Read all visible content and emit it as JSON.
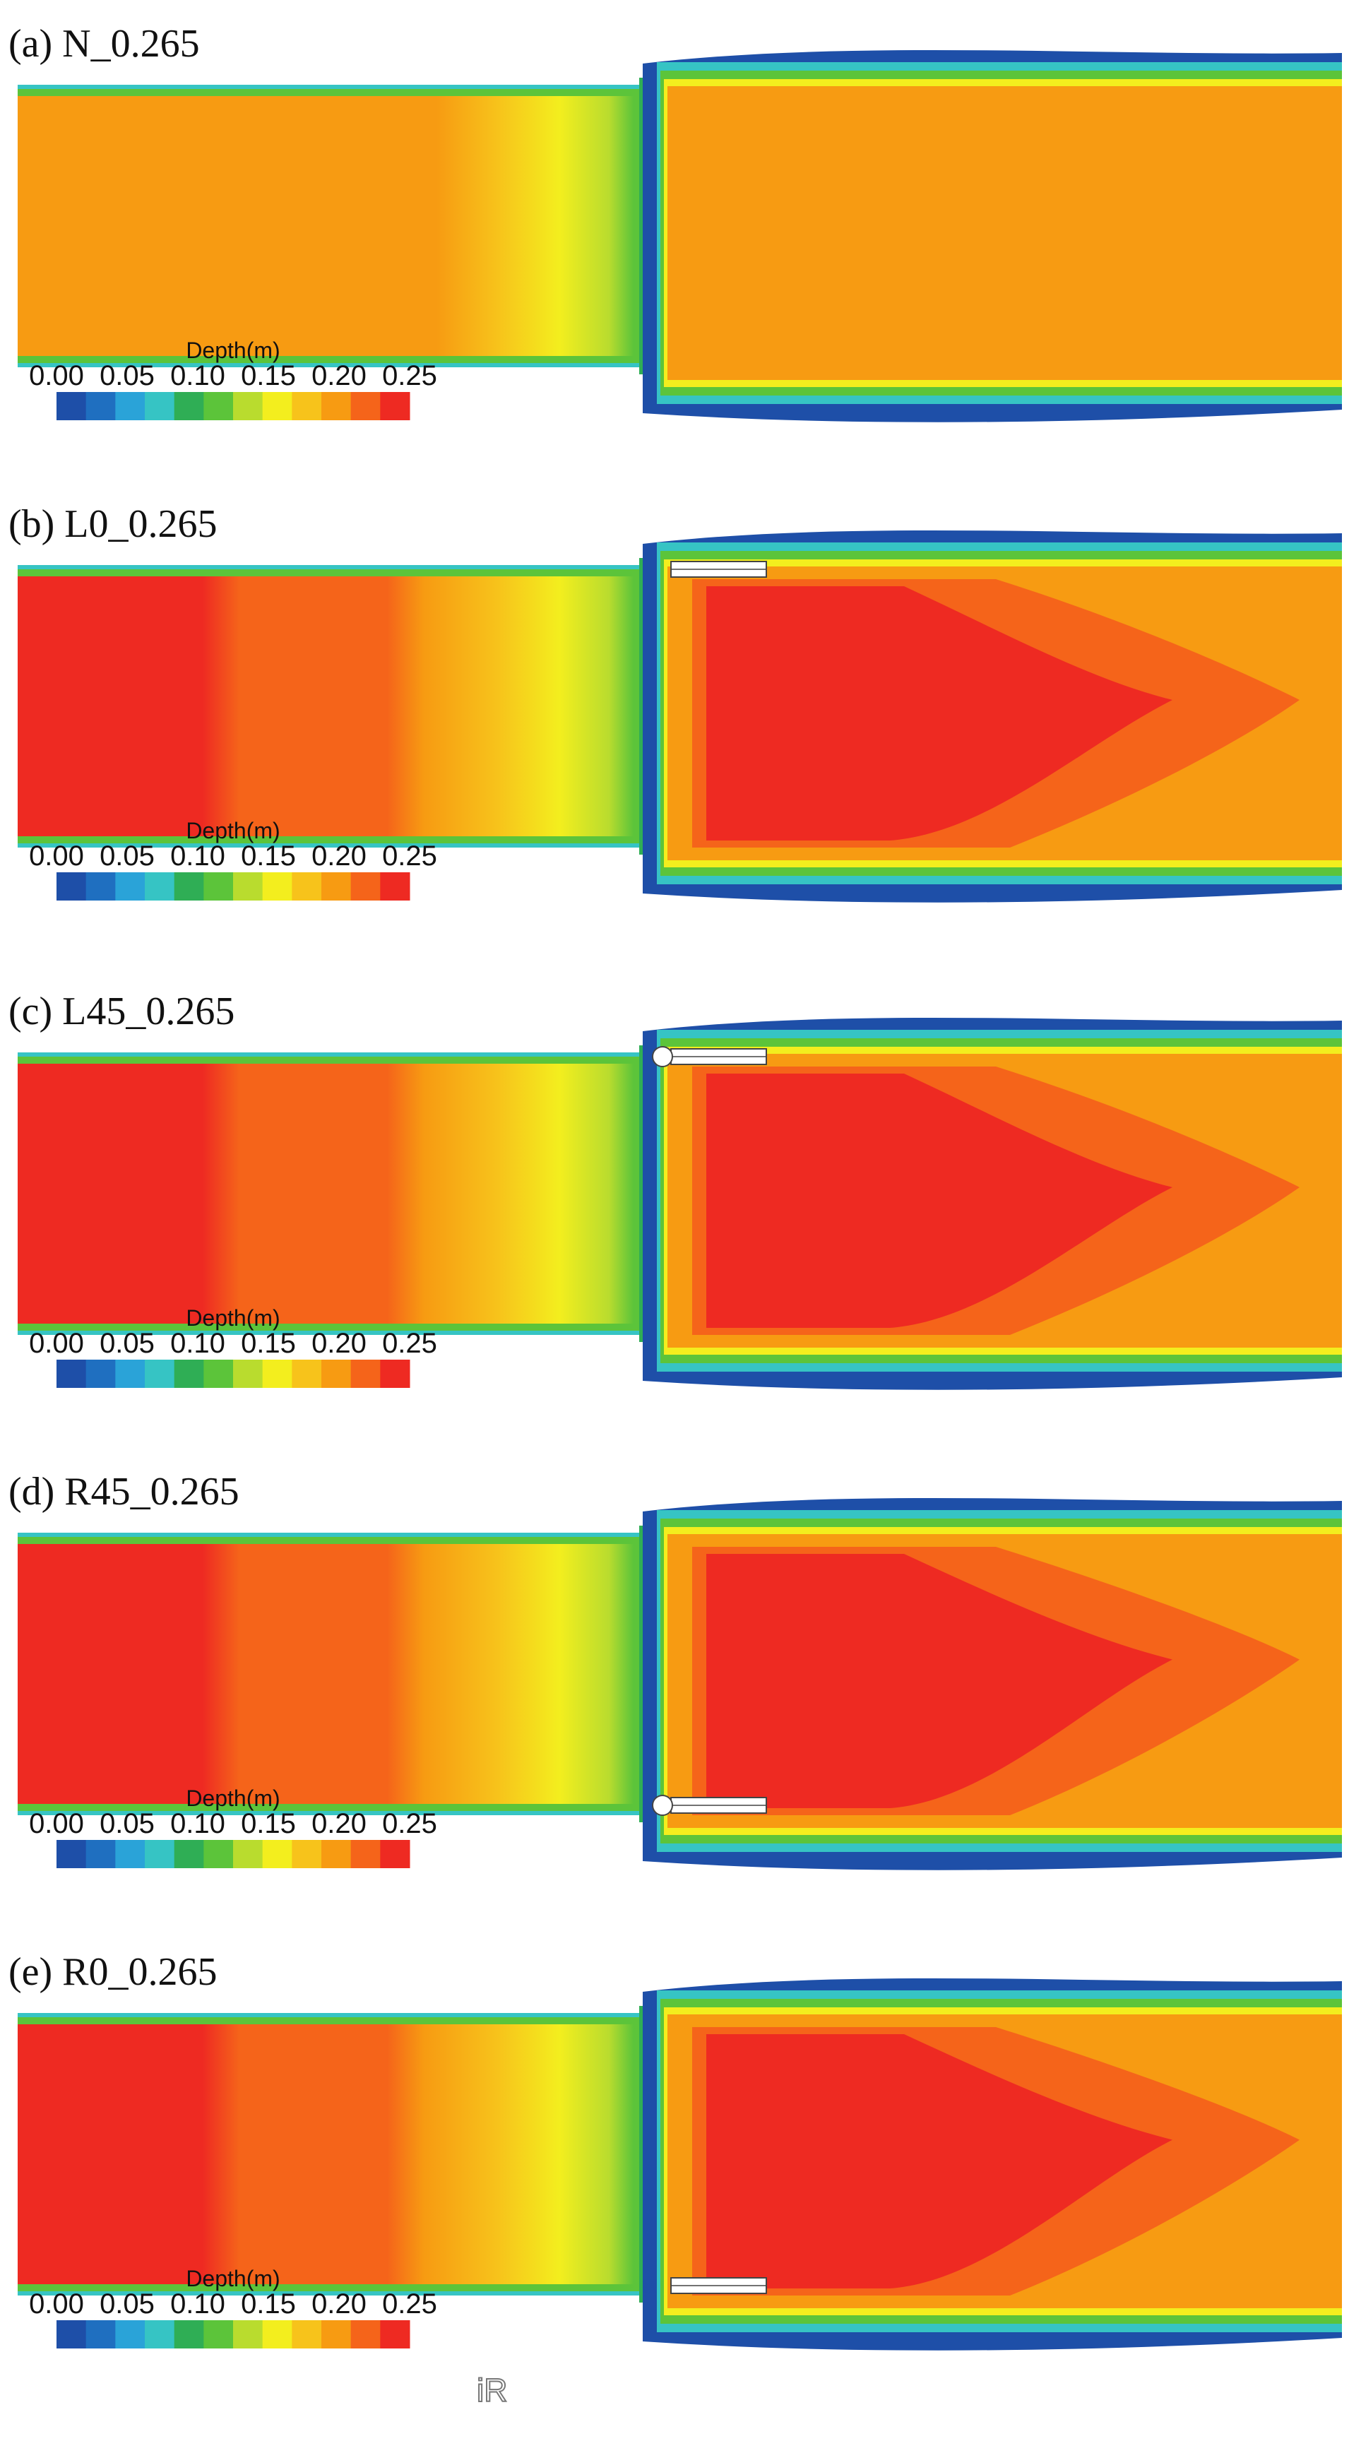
{
  "figure": {
    "panels": [
      {
        "label": "(a) N_0.265",
        "case": "N",
        "structure": "none",
        "upstream_level": "orange"
      },
      {
        "label": "(b) L0_0.265",
        "case": "L0",
        "structure": "left-0",
        "upstream_level": "red"
      },
      {
        "label": "(c) L45_0.265",
        "case": "L45",
        "structure": "left-45",
        "upstream_level": "red"
      },
      {
        "label": "(d) R45_0.265",
        "case": "R45",
        "structure": "right-45",
        "upstream_level": "red"
      },
      {
        "label": "(e) R0_0.265",
        "case": "R0",
        "structure": "right-0",
        "upstream_level": "red"
      }
    ],
    "colorbar": {
      "title": "Depth(m)",
      "ticks": [
        "0.00",
        "0.05",
        "0.10",
        "0.15",
        "0.20",
        "0.25"
      ],
      "colors": [
        "#1e4fa8",
        "#1f6fc0",
        "#2aa3d8",
        "#36c4c4",
        "#2fae55",
        "#5cc43a",
        "#b9dc2e",
        "#f3ee1e",
        "#f7c31b",
        "#f79b12",
        "#f5641a",
        "#ee2a22"
      ]
    },
    "logo": "iR"
  }
}
